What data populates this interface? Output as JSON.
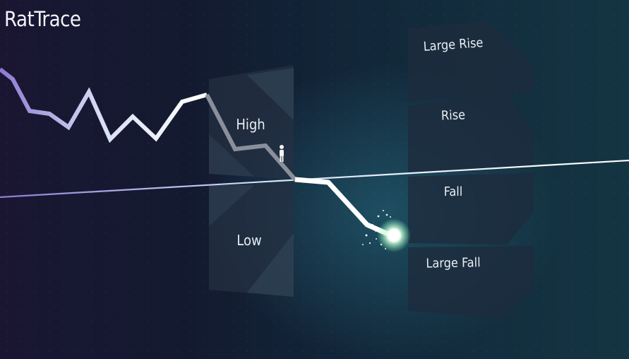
{
  "app": {
    "title": "RatTrace"
  },
  "zones": {
    "high": "High",
    "low": "Low"
  },
  "bets": [
    {
      "id": "large-rise",
      "label": "Large Rise"
    },
    {
      "id": "rise",
      "label": "Rise"
    },
    {
      "id": "fall",
      "label": "Fall"
    },
    {
      "id": "large-fall",
      "label": "Large Fall"
    }
  ],
  "colors": {
    "trace_start": "#a08cdc",
    "trace_end": "#ffffff",
    "baseline": "#e8f4ff",
    "glow": "#ccffdd"
  }
}
